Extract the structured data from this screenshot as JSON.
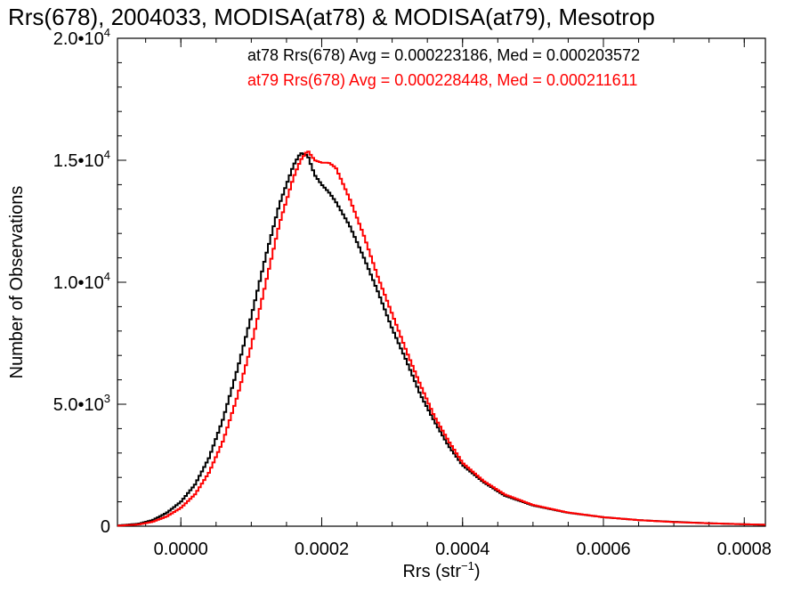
{
  "chart_data": {
    "type": "line",
    "title": "Rrs(678), 2004033, MODISA(at78) & MODISA(at79), Mesotrop",
    "xlabel": "Rrs (str",
    "xlabel_sup": "−1",
    "xlabel_close": ")",
    "ylabel": "Number of Observations",
    "xlim": [
      -9e-05,
      0.00083
    ],
    "ylim": [
      0,
      20000
    ],
    "x_ticks": [
      {
        "value": 0.0,
        "label": "0.0000"
      },
      {
        "value": 0.0002,
        "label": "0.0002"
      },
      {
        "value": 0.0004,
        "label": "0.0004"
      },
      {
        "value": 0.0006,
        "label": "0.0006"
      },
      {
        "value": 0.0008,
        "label": "0.0008"
      }
    ],
    "y_ticks": [
      {
        "value": 0,
        "base": "0",
        "exp": ""
      },
      {
        "value": 5000,
        "base": "5.0•10",
        "exp": "3"
      },
      {
        "value": 10000,
        "base": "1.0•10",
        "exp": "4"
      },
      {
        "value": 15000,
        "base": "1.5•10",
        "exp": "4"
      },
      {
        "value": 20000,
        "base": "2.0•10",
        "exp": "4"
      }
    ],
    "series": [
      {
        "name": "at78",
        "color": "#000000",
        "x": [
          -9e-05,
          -6e-05,
          -4e-05,
          -2e-05,
          0.0,
          2e-05,
          4e-05,
          6e-05,
          8e-05,
          0.0001,
          0.00012,
          0.00014,
          0.00016,
          0.00017,
          0.00018,
          0.00019,
          0.0002,
          0.00021,
          0.00022,
          0.00024,
          0.00026,
          0.00028,
          0.0003,
          0.00032,
          0.00034,
          0.00036,
          0.00038,
          0.0004,
          0.00043,
          0.00046,
          0.0005,
          0.00055,
          0.0006,
          0.00065,
          0.0007,
          0.00075,
          0.0008,
          0.00083
        ],
        "y": [
          30,
          100,
          250,
          550,
          1000,
          1700,
          2800,
          4400,
          6400,
          8600,
          11000,
          13200,
          14800,
          15300,
          15200,
          14400,
          14000,
          13700,
          13300,
          12300,
          11000,
          9600,
          8100,
          6800,
          5400,
          4300,
          3300,
          2500,
          1800,
          1250,
          850,
          550,
          370,
          250,
          180,
          120,
          80,
          60
        ]
      },
      {
        "name": "at79",
        "color": "#ff0000",
        "x": [
          -9e-05,
          -6e-05,
          -4e-05,
          -2e-05,
          0.0,
          2e-05,
          4e-05,
          6e-05,
          8e-05,
          0.0001,
          0.00012,
          0.00014,
          0.00016,
          0.00017,
          0.00018,
          0.00019,
          0.0002,
          0.00021,
          0.00022,
          0.00024,
          0.00026,
          0.00028,
          0.0003,
          0.00032,
          0.00034,
          0.00036,
          0.00038,
          0.0004,
          0.00043,
          0.00046,
          0.0005,
          0.00055,
          0.0006,
          0.00065,
          0.0007,
          0.00075,
          0.0008,
          0.00083
        ],
        "y": [
          20,
          70,
          180,
          400,
          750,
          1300,
          2200,
          3500,
          5300,
          7400,
          9900,
          12400,
          14300,
          15000,
          15400,
          15000,
          14900,
          14900,
          14700,
          13400,
          11900,
          10200,
          8700,
          7200,
          5800,
          4500,
          3500,
          2600,
          1850,
          1300,
          870,
          560,
          370,
          250,
          170,
          120,
          80,
          60
        ]
      }
    ]
  },
  "annotations": [
    {
      "text": "at78 Rrs(678) Avg = 0.000223186, Med = 0.000203572",
      "color": "#000000"
    },
    {
      "text": "at79 Rrs(678) Avg = 0.000228448, Med = 0.000211611",
      "color": "#ff0000"
    }
  ]
}
